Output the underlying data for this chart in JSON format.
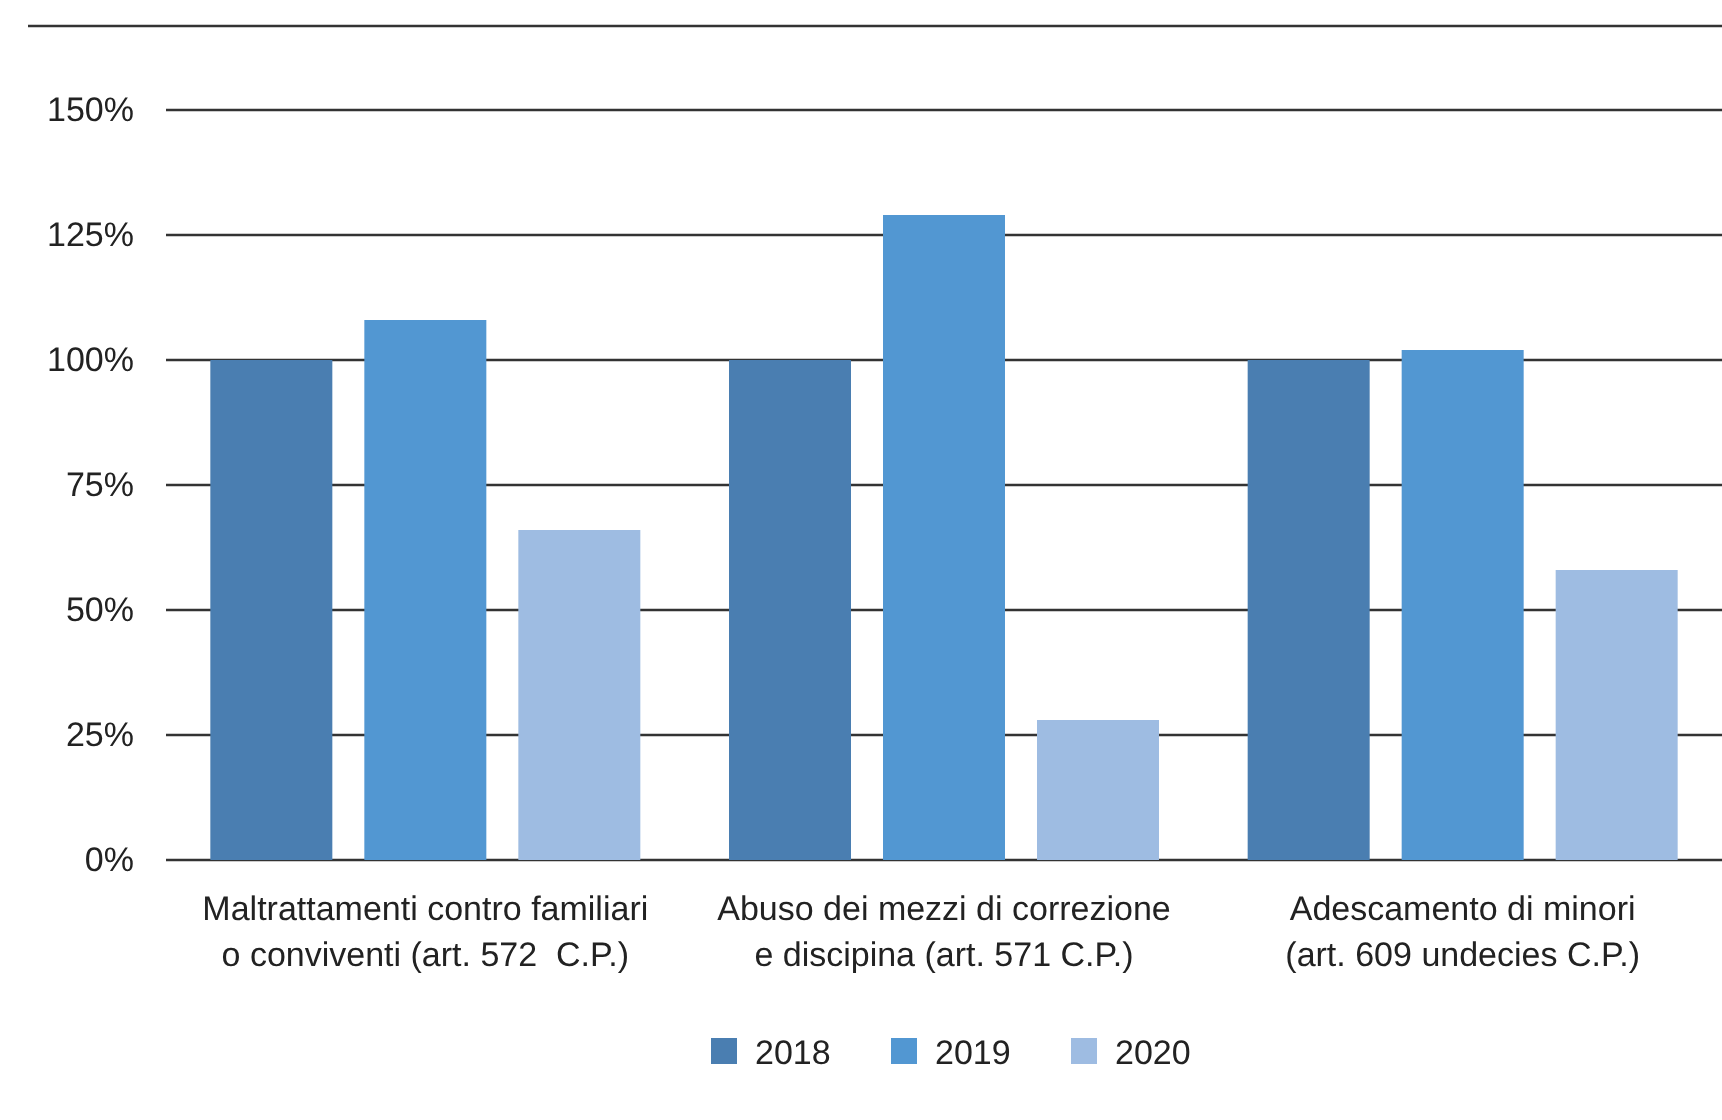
{
  "chart_data": {
    "type": "bar",
    "categories": [
      "Maltrattamenti contro familiari\no conviventi (art. 572  C.P.)",
      "Abuso dei mezzi di correzione\ne discipina (art. 571 C.P.)",
      "Adescamento di minori\n(art. 609 undecies C.P.)"
    ],
    "series": [
      {
        "name": "2018",
        "color": "#4a7eb1",
        "values": [
          100,
          100,
          100
        ]
      },
      {
        "name": "2019",
        "color": "#5297d2",
        "values": [
          108,
          129,
          102
        ]
      },
      {
        "name": "2020",
        "color": "#9ebce2",
        "values": [
          66,
          28,
          58
        ]
      }
    ],
    "ylim": [
      0,
      150
    ],
    "yticks": [
      {
        "value": 0,
        "label": "0%"
      },
      {
        "value": 25,
        "label": "25%"
      },
      {
        "value": 50,
        "label": "50%"
      },
      {
        "value": 75,
        "label": "75%"
      },
      {
        "value": 100,
        "label": "100%"
      },
      {
        "value": 125,
        "label": "125%"
      },
      {
        "value": 150,
        "label": "150%"
      }
    ],
    "grid": "y",
    "legend": "bottom"
  }
}
